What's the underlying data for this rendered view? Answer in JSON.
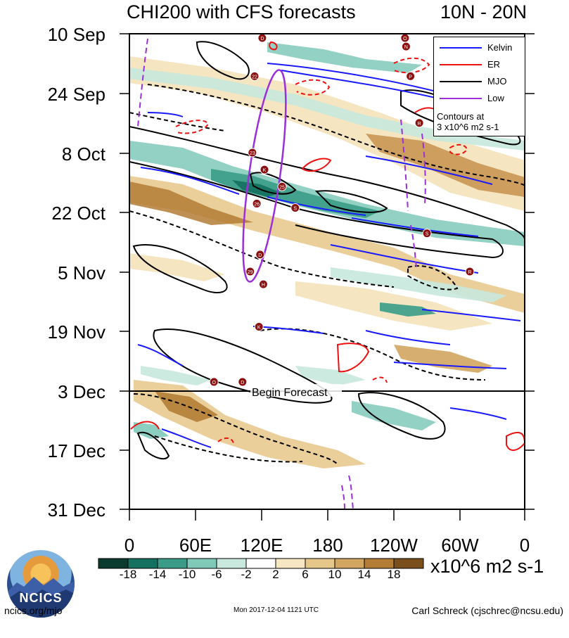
{
  "chart_data": {
    "type": "heatmap",
    "title": "CHI200 with CFS forecasts",
    "region": "10N - 20N",
    "x_ticks": [
      "0",
      "60E",
      "120E",
      "180",
      "120W",
      "60W",
      "0"
    ],
    "y_ticks": [
      "10 Sep",
      "24 Sep",
      "8 Oct",
      "22 Oct",
      "5 Nov",
      "19 Nov",
      "3 Dec",
      "17 Dec",
      "31 Dec"
    ],
    "forecast_line": {
      "date": "3 Dec",
      "label": "Begin Forecast"
    },
    "legend": {
      "items": [
        {
          "name": "Kelvin",
          "color": "#1a1aff"
        },
        {
          "name": "ER",
          "color": "#ee1111"
        },
        {
          "name": "MJO",
          "color": "#000000"
        },
        {
          "name": "Low",
          "color": "#9b30d9"
        }
      ],
      "note": "Contours at\n3 x10^6 m2 s-1",
      "placement": "top-right"
    },
    "colorbar": {
      "labels": [
        "-18",
        "-14",
        "-10",
        "-6",
        "-2",
        "2",
        "6",
        "10",
        "14",
        "18"
      ],
      "colors": [
        "#0b3b2e",
        "#14705f",
        "#3a9c88",
        "#7fc9b8",
        "#c8e8de",
        "#ffffff",
        "#f6e6c2",
        "#e6c78a",
        "#d2a560",
        "#b47d36",
        "#7a4f1c"
      ],
      "units": "x10^6 m2 s-1"
    },
    "storms": [
      {
        "label": "D",
        "lon": 121,
        "date": "11 Sep"
      },
      {
        "label": "O",
        "lon": 251,
        "date": "11 Sep"
      },
      {
        "label": "N",
        "lon": 252,
        "date": "13 Sep"
      },
      {
        "label": "22",
        "lon": 114,
        "date": "20 Sep"
      },
      {
        "label": "P",
        "lon": 256,
        "date": "20 Sep"
      },
      {
        "label": "R",
        "lon": 264,
        "date": "1 Oct"
      },
      {
        "label": "23",
        "lon": 112,
        "date": "8 Oct"
      },
      {
        "label": "K",
        "lon": 123,
        "date": "12 Oct"
      },
      {
        "label": "25",
        "lon": 139,
        "date": "16 Oct"
      },
      {
        "label": "26",
        "lon": 116,
        "date": "20 Oct"
      },
      {
        "label": "S",
        "lon": 151,
        "date": "21 Oct"
      },
      {
        "label": "S",
        "lon": 271,
        "date": "27 Oct"
      },
      {
        "label": "R",
        "lon": 310,
        "date": "5 Nov"
      },
      {
        "label": "D",
        "lon": 119,
        "date": "1 Nov"
      },
      {
        "label": "29",
        "lon": 110,
        "date": "5 Nov"
      },
      {
        "label": "H",
        "lon": 122,
        "date": "8 Nov"
      },
      {
        "label": "K",
        "lon": 118,
        "date": "18 Nov"
      },
      {
        "label": "O",
        "lon": 77,
        "date": "1 Dec"
      },
      {
        "label": "D",
        "lon": 103,
        "date": "1 Dec"
      }
    ]
  },
  "footer": {
    "left": "ncics.org/mjo",
    "center": "Mon 2017-12-04 1121 UTC",
    "right": "Carl Schreck (cjschrec@ncsu.edu)"
  },
  "logo": {
    "text": "NCICS"
  }
}
